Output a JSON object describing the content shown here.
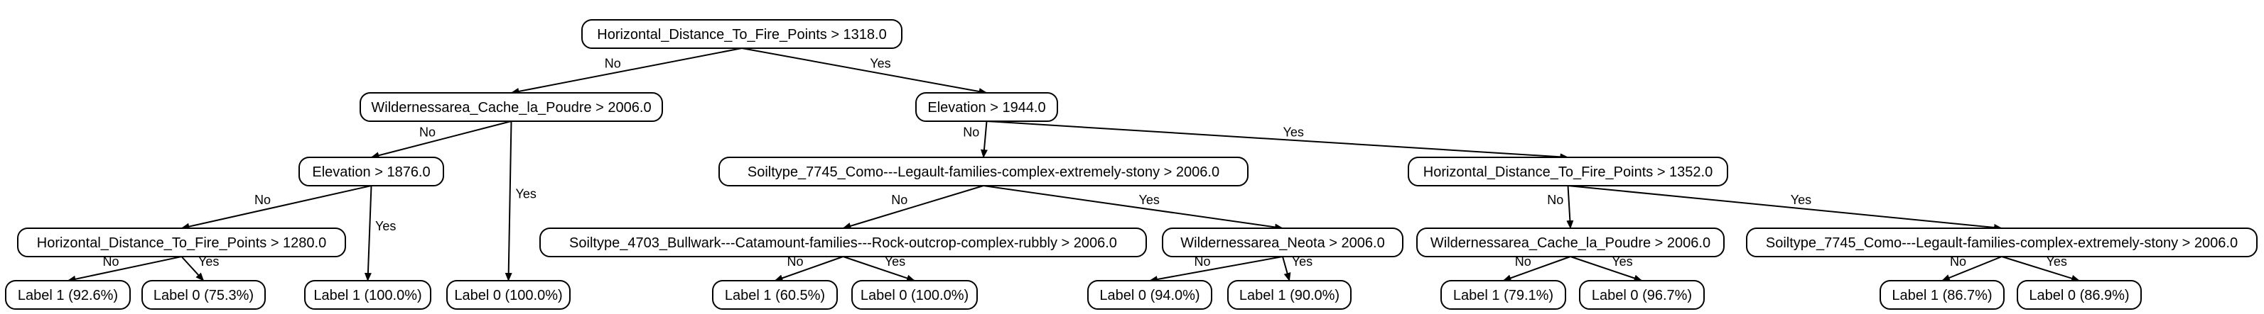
{
  "tree": {
    "nodes": [
      {
        "id": "n0",
        "label": "Horizontal_Distance_To_Fire_Points > 1318.0"
      },
      {
        "id": "n1",
        "label": "Wildernessarea_Cache_la_Poudre > 2006.0"
      },
      {
        "id": "n2",
        "label": "Elevation > 1944.0"
      },
      {
        "id": "n3",
        "label": "Elevation > 1876.0"
      },
      {
        "id": "n4",
        "label": "Label 0 (100.0%)"
      },
      {
        "id": "n5",
        "label": "Horizontal_Distance_To_Fire_Points > 1280.0"
      },
      {
        "id": "n6",
        "label": "Label 1 (100.0%)"
      },
      {
        "id": "n7",
        "label": "Label 1 (92.6%)"
      },
      {
        "id": "n8",
        "label": "Label 0 (75.3%)"
      },
      {
        "id": "n9",
        "label": "Soiltype_7745_Como---Legault-families-complex-extremely-stony > 2006.0"
      },
      {
        "id": "n10",
        "label": "Horizontal_Distance_To_Fire_Points > 1352.0"
      },
      {
        "id": "n11",
        "label": "Soiltype_4703_Bullwark---Catamount-families---Rock-outcrop-complex-rubbly > 2006.0"
      },
      {
        "id": "n12",
        "label": "Wildernessarea_Neota > 2006.0"
      },
      {
        "id": "n13",
        "label": "Label 1 (60.5%)"
      },
      {
        "id": "n14",
        "label": "Label 0 (100.0%)"
      },
      {
        "id": "n15",
        "label": "Label 0 (94.0%)"
      },
      {
        "id": "n16",
        "label": "Label 1 (90.0%)"
      },
      {
        "id": "n17",
        "label": "Wildernessarea_Cache_la_Poudre > 2006.0"
      },
      {
        "id": "n18",
        "label": "Soiltype_7745_Como---Legault-families-complex-extremely-stony > 2006.0"
      },
      {
        "id": "n19",
        "label": "Label 1 (79.1%)"
      },
      {
        "id": "n20",
        "label": "Label 0 (96.7%)"
      },
      {
        "id": "n21",
        "label": "Label 1 (86.7%)"
      },
      {
        "id": "n22",
        "label": "Label 0 (86.9%)"
      }
    ],
    "edges": [
      {
        "from": "n0",
        "to": "n1",
        "label": "No"
      },
      {
        "from": "n0",
        "to": "n2",
        "label": "Yes"
      },
      {
        "from": "n1",
        "to": "n3",
        "label": "No"
      },
      {
        "from": "n1",
        "to": "n4",
        "label": "Yes"
      },
      {
        "from": "n3",
        "to": "n5",
        "label": "No"
      },
      {
        "from": "n3",
        "to": "n6",
        "label": "Yes"
      },
      {
        "from": "n5",
        "to": "n7",
        "label": "No"
      },
      {
        "from": "n5",
        "to": "n8",
        "label": "Yes"
      },
      {
        "from": "n2",
        "to": "n9",
        "label": "No"
      },
      {
        "from": "n2",
        "to": "n10",
        "label": "Yes"
      },
      {
        "from": "n9",
        "to": "n11",
        "label": "No"
      },
      {
        "from": "n9",
        "to": "n12",
        "label": "Yes"
      },
      {
        "from": "n11",
        "to": "n13",
        "label": "No"
      },
      {
        "from": "n11",
        "to": "n14",
        "label": "Yes"
      },
      {
        "from": "n12",
        "to": "n15",
        "label": "No"
      },
      {
        "from": "n12",
        "to": "n16",
        "label": "Yes"
      },
      {
        "from": "n10",
        "to": "n17",
        "label": "No"
      },
      {
        "from": "n10",
        "to": "n18",
        "label": "Yes"
      },
      {
        "from": "n17",
        "to": "n19",
        "label": "No"
      },
      {
        "from": "n17",
        "to": "n20",
        "label": "Yes"
      },
      {
        "from": "n18",
        "to": "n21",
        "label": "No"
      },
      {
        "from": "n18",
        "to": "n22",
        "label": "Yes"
      }
    ]
  }
}
